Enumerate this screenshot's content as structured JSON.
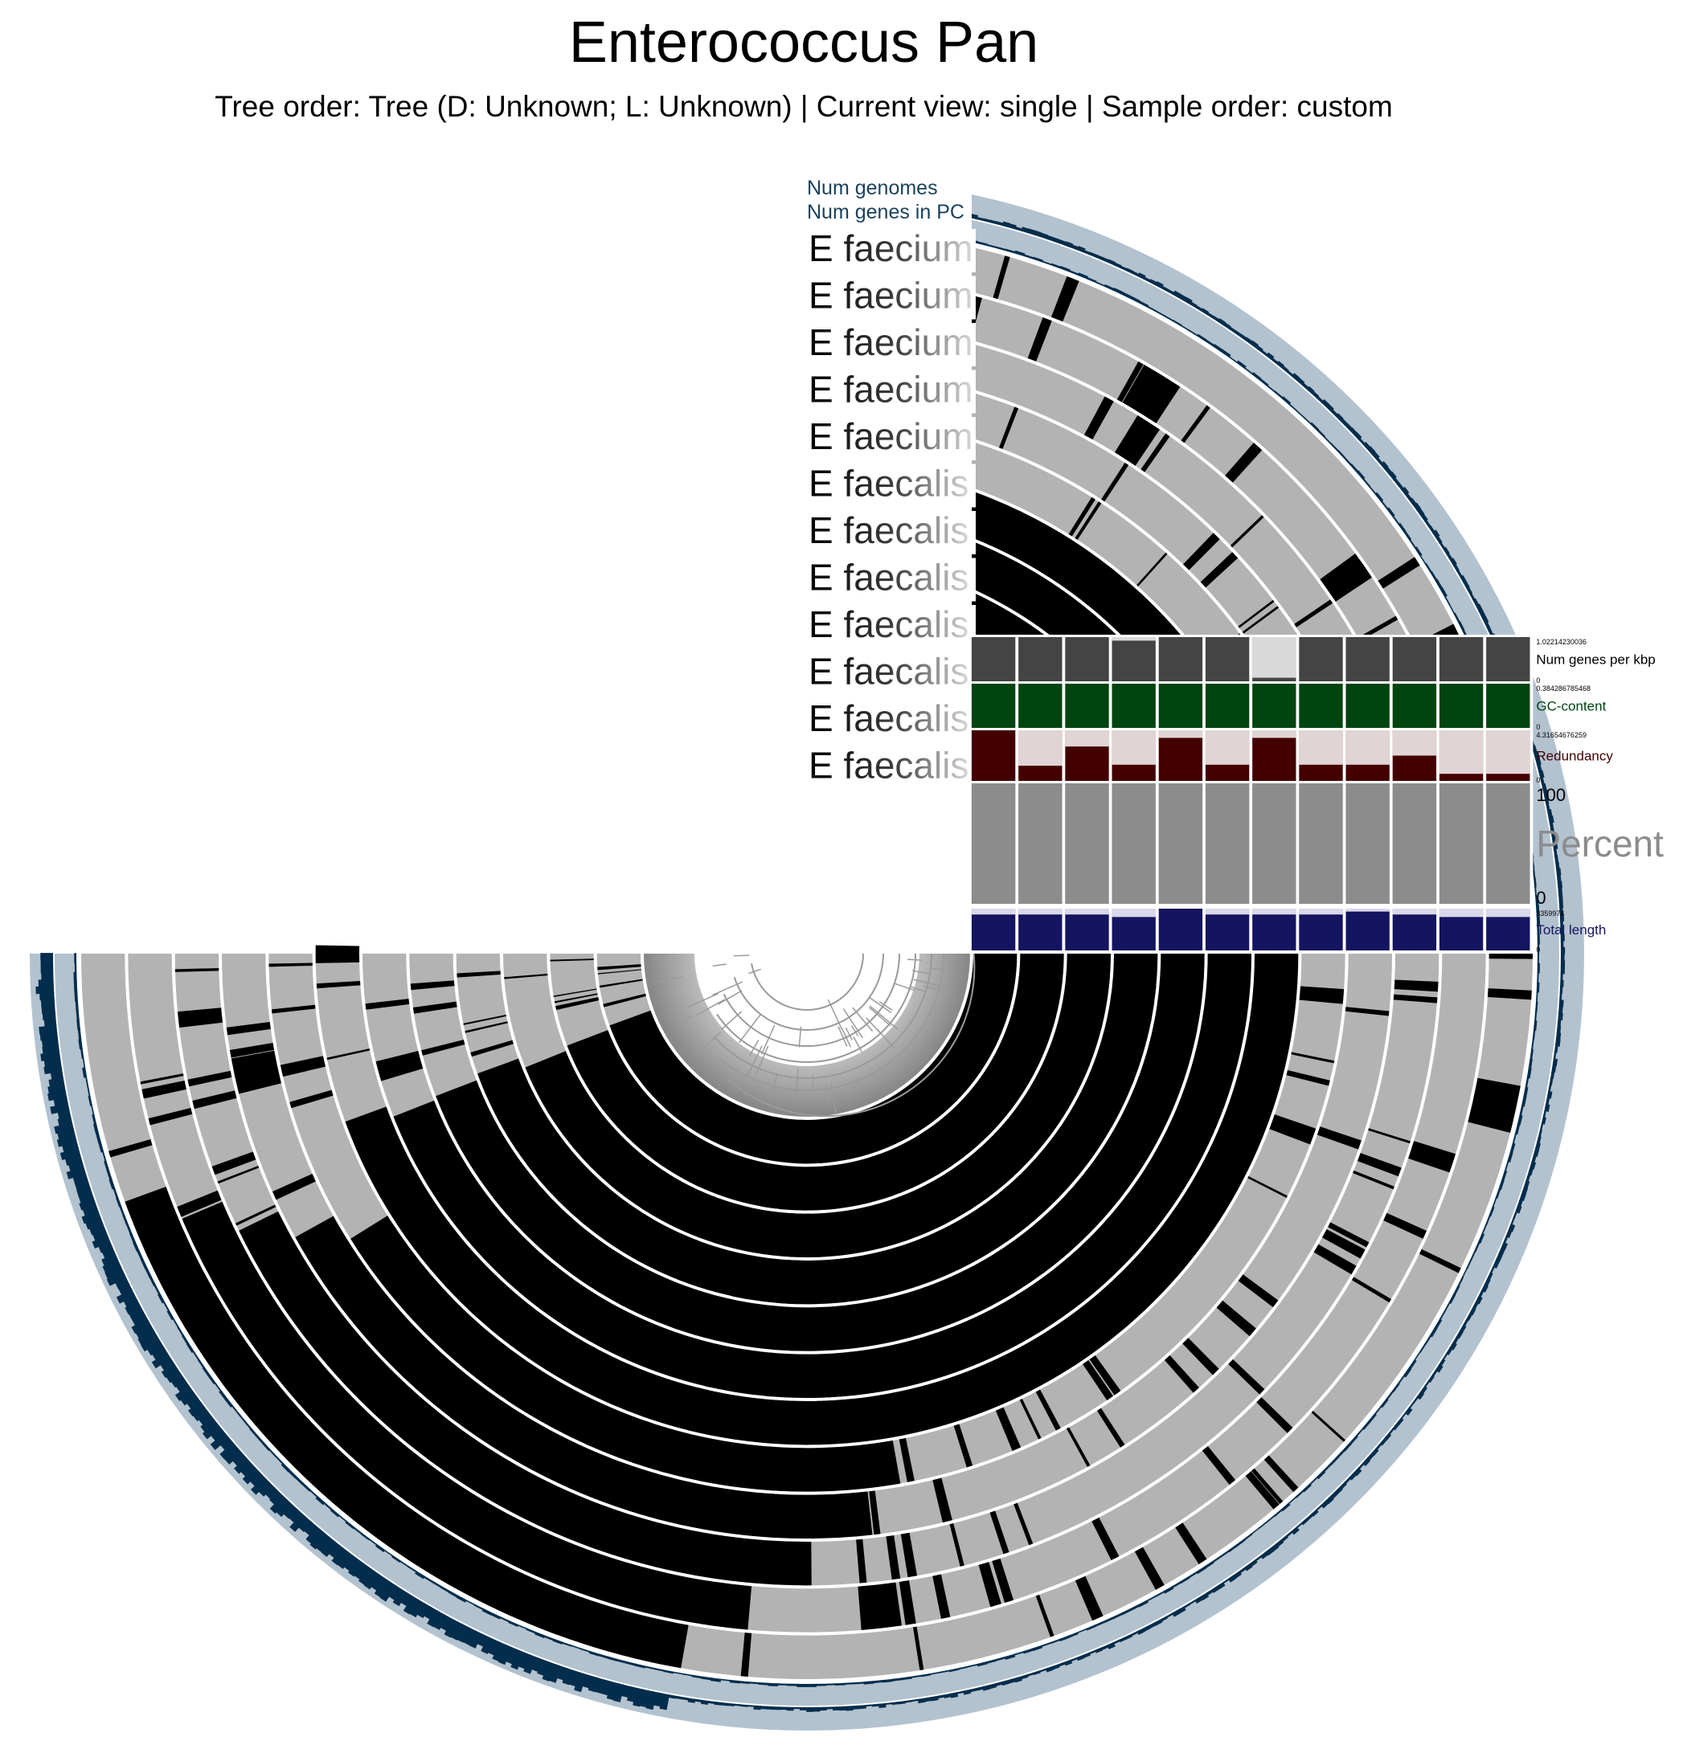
{
  "title": "Enterococcus Pan",
  "subtitle": "Tree order: Tree (D: Unknown; L: Unknown) | Current view: single | Sample order: custom",
  "layers": {
    "num_genomes": "Num genomes",
    "num_genes": "Num genes in PC",
    "samples": [
      "E faecium",
      "E faecium",
      "E faecium",
      "E faecium",
      "E faecium",
      "E faecalis",
      "E faecalis",
      "E faecalis",
      "E faecalis",
      "E faecalis",
      "E faecalis",
      "E faecalis"
    ]
  },
  "sample_bars": {
    "num_genes_per_kbp": {
      "label": "Num genes per kbp",
      "max": "1.02214230036",
      "min": "0",
      "color": "#444444",
      "values": [
        1,
        1,
        1,
        0.92,
        1,
        1,
        0.08,
        1,
        1,
        1,
        1,
        1
      ]
    },
    "gc_content": {
      "label": "GC-content",
      "max": "0.384286785468",
      "min": "0",
      "color": "#00440f",
      "values": [
        1,
        1,
        1,
        1,
        1,
        1,
        1,
        1,
        1,
        1,
        1,
        1
      ]
    },
    "redundancy": {
      "label": "Redundancy",
      "max": "4.31654676259",
      "min": "0",
      "color": "#440000",
      "values": [
        1.0,
        0.3,
        0.68,
        0.32,
        0.85,
        0.32,
        0.85,
        0.32,
        0.32,
        0.5,
        0.14,
        0.14
      ]
    },
    "percent": {
      "label": "Percent",
      "max": "100",
      "min": "0",
      "color": "#8c8c8c",
      "values": [
        1,
        1,
        1,
        1,
        1,
        1,
        1,
        1,
        1,
        1,
        1,
        1
      ]
    },
    "total_length": {
      "label": "Total length",
      "max": "3359974",
      "min": "0",
      "color": "#141460",
      "values": [
        0.86,
        0.86,
        0.86,
        0.8,
        1.0,
        0.86,
        0.86,
        0.86,
        0.93,
        0.86,
        0.8,
        0.8
      ]
    }
  },
  "colors": {
    "presence": "#000000",
    "absence": "#b3b3b3",
    "num_genomes": "#022d4c",
    "num_genes_bg": "#b3c2cf",
    "tree": "#9a9a9a"
  }
}
